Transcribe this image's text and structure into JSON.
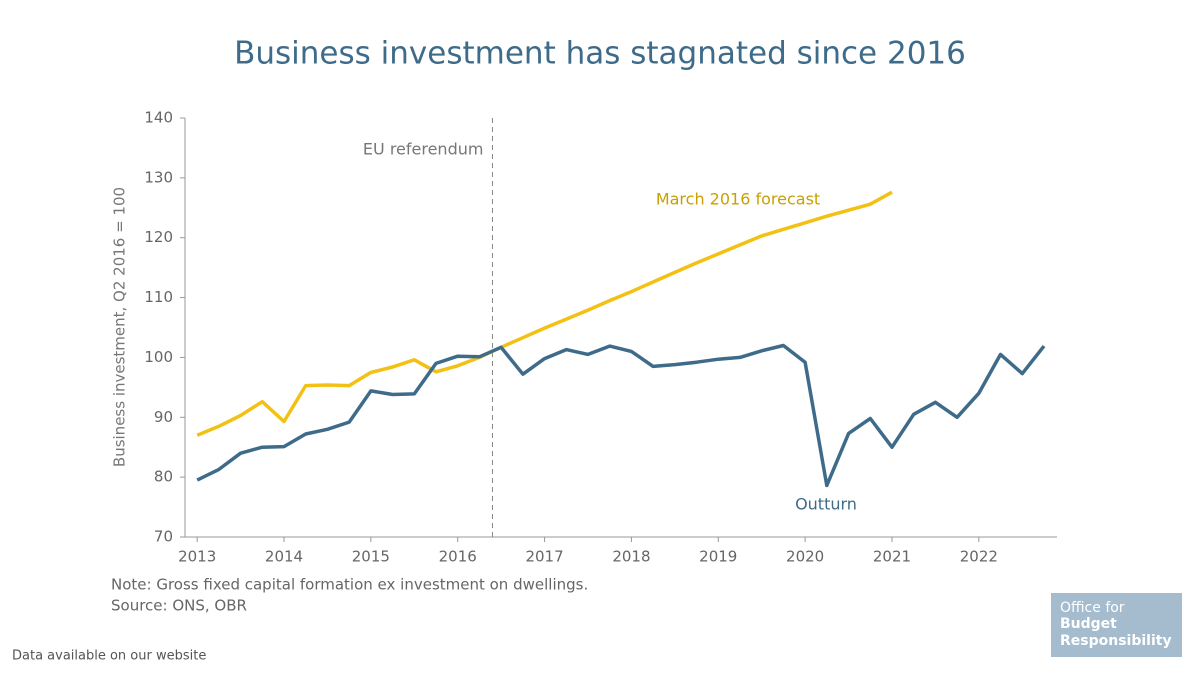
{
  "chart_data": {
    "type": "line",
    "title": "Business investment has stagnated since 2016",
    "y_label": "Business investment, Q2 2016 = 100",
    "xlim": [
      2012.86,
      2022.9
    ],
    "xticks": [
      2013,
      2014,
      2015,
      2016,
      2017,
      2018,
      2019,
      2020,
      2021,
      2022
    ],
    "ylim": [
      70,
      140
    ],
    "yticks": [
      70,
      80,
      90,
      100,
      110,
      120,
      130,
      140
    ],
    "grid": false,
    "series": [
      {
        "name": "Outturn",
        "color": "#3f6b8a",
        "x": [
          2013,
          2013.25,
          2013.5,
          2013.75,
          2014,
          2014.25,
          2014.5,
          2014.75,
          2015,
          2015.25,
          2015.5,
          2015.75,
          2016,
          2016.25,
          2016.5,
          2016.75,
          2017,
          2017.25,
          2017.5,
          2017.75,
          2018,
          2018.25,
          2018.5,
          2018.75,
          2019,
          2019.25,
          2019.5,
          2019.75,
          2020,
          2020.25,
          2020.5,
          2020.75,
          2021,
          2021.25,
          2021.5,
          2021.75,
          2022,
          2022.25,
          2022.5,
          2022.75
        ],
        "values": [
          79.5,
          81.3,
          84,
          85,
          85.1,
          87.2,
          88,
          89.2,
          94.4,
          93.8,
          93.9,
          99,
          100.2,
          100.1,
          101.7,
          97.2,
          99.8,
          101.3,
          100.5,
          101.9,
          101,
          98.5,
          98.8,
          99.2,
          99.7,
          100,
          101.1,
          102,
          99.2,
          78.6,
          87.3,
          89.8,
          85,
          90.5,
          92.5,
          90,
          94,
          100.5,
          97.3,
          101.9
        ]
      },
      {
        "name": "March 2016 forecast",
        "color": "#f2c114",
        "x": [
          2013,
          2013.25,
          2013.5,
          2013.75,
          2014,
          2014.25,
          2014.5,
          2014.75,
          2015,
          2015.25,
          2015.5,
          2015.75,
          2016,
          2016.25,
          2016.5,
          2016.75,
          2017,
          2017.25,
          2017.5,
          2017.75,
          2018,
          2018.25,
          2018.5,
          2018.75,
          2019,
          2019.25,
          2019.5,
          2019.75,
          2020,
          2020.25,
          2020.5,
          2020.75,
          2021
        ],
        "values": [
          87,
          88.5,
          90.3,
          92.6,
          89.3,
          95.3,
          95.4,
          95.3,
          97.5,
          98.4,
          99.6,
          97.6,
          98.6,
          100,
          101.7,
          103.3,
          104.9,
          106.4,
          107.9,
          109.5,
          111,
          112.6,
          114.2,
          115.8,
          117.3,
          118.8,
          120.3,
          121.4,
          122.5,
          123.6,
          124.6,
          125.6,
          127.6
        ]
      }
    ],
    "annotations": [
      {
        "text": "EU referendum",
        "x": 2016.4
      }
    ],
    "note": "Note: Gross fixed capital formation ex investment on dwellings.",
    "source": "Source: ONS, OBR",
    "footer": "Data available on our website",
    "logo": [
      "Office for",
      "Budget",
      "Responsibility"
    ]
  }
}
